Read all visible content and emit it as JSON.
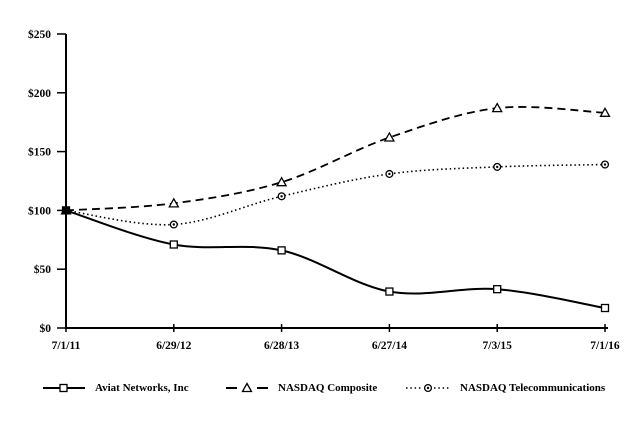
{
  "chart_data": {
    "type": "line",
    "title": "",
    "x_categories": [
      "7/1/11",
      "6/29/12",
      "6/28/13",
      "6/27/14",
      "7/3/15",
      "7/1/16"
    ],
    "y_axis": {
      "tick_labels": [
        "$0",
        "$50",
        "$100",
        "$150",
        "$200",
        "$250"
      ],
      "tick_values": [
        0,
        50,
        100,
        150,
        200,
        250
      ],
      "ylim": [
        0,
        250
      ]
    },
    "grid": "off",
    "legend_position": "bottom",
    "line_color": "#000000",
    "background_color": "#ffffff",
    "series": [
      {
        "name": "Aviat Networks, Inc",
        "marker": "square",
        "line_style": "solid",
        "values": [
          100,
          71,
          66,
          31,
          33,
          17
        ]
      },
      {
        "name": "NASDAQ Composite",
        "marker": "triangle",
        "line_style": "dashed",
        "values": [
          100,
          106,
          124,
          162,
          187,
          183
        ]
      },
      {
        "name": "NASDAQ Telecommunications",
        "marker": "circle-dot",
        "line_style": "dotted",
        "values": [
          100,
          88,
          112,
          131,
          137,
          139
        ]
      }
    ]
  }
}
